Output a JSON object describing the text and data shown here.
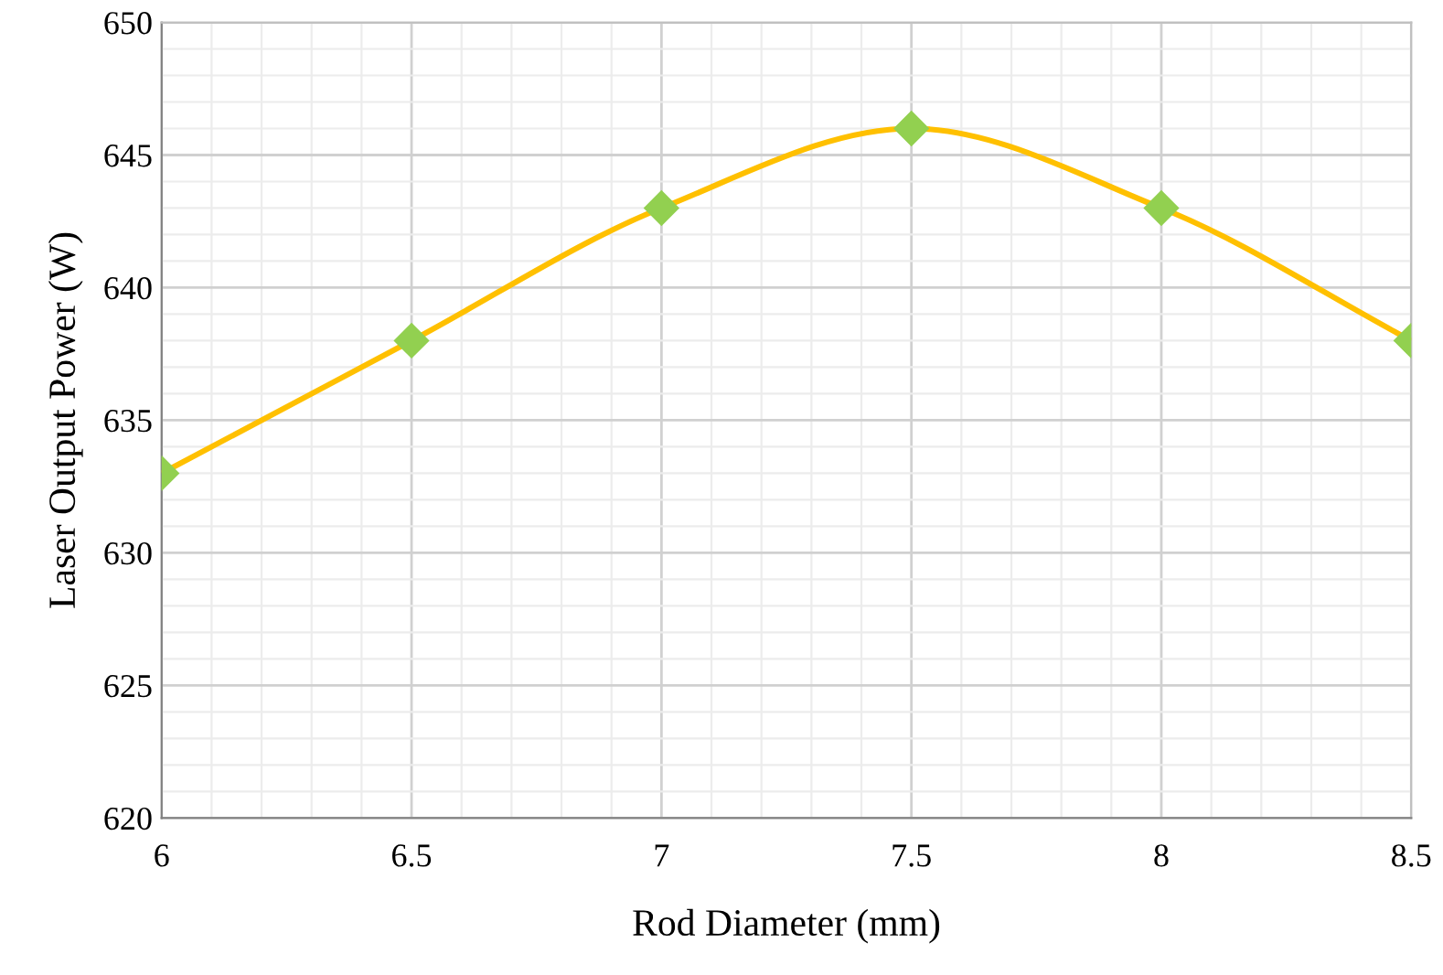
{
  "chart_data": {
    "type": "line",
    "xlabel": "Rod Diameter (mm)",
    "ylabel": "Laser Output Power (W)",
    "x": [
      6,
      6.5,
      7,
      7.5,
      8,
      8.5
    ],
    "series": [
      {
        "color": "#ffc000",
        "values": [
          633,
          638,
          643,
          646,
          643,
          638
        ]
      },
      {
        "type": "scatter",
        "marker": "diamond",
        "color": "#92d050",
        "values": [
          633,
          638,
          643,
          646,
          643,
          638
        ]
      }
    ],
    "line_style": "solid",
    "xlim": [
      6,
      8.5
    ],
    "xticks": [
      6,
      6.5,
      7,
      7.5,
      8,
      8.5
    ],
    "ylim": [
      620,
      650
    ],
    "yticks": [
      620,
      625,
      630,
      635,
      640,
      645,
      650
    ],
    "grid": true,
    "legend": false
  }
}
